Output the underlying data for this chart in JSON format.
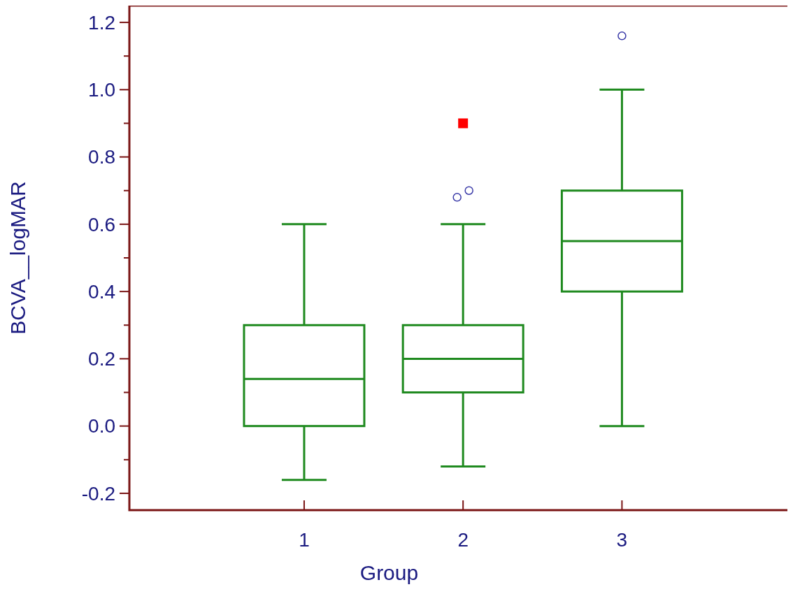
{
  "chart_data": {
    "type": "box",
    "xlabel": "Group",
    "ylabel": "BCVA__logMAR",
    "categories": [
      "1",
      "2",
      "3"
    ],
    "ylim": [
      -0.25,
      1.25
    ],
    "yticks": [
      -0.2,
      {
        "value": -0.1,
        "label": null
      },
      {
        "value": 0,
        "label": "0.0"
      },
      {
        "value": 0.1,
        "label": null
      },
      0.2,
      {
        "value": 0.3,
        "label": null
      },
      0.4,
      {
        "value": 0.5,
        "label": null
      },
      0.6,
      {
        "value": 0.7,
        "label": null
      },
      0.8,
      {
        "value": 0.9,
        "label": null
      },
      {
        "value": 1,
        "label": "1.0"
      },
      {
        "value": 1.1,
        "label": null
      },
      1.2
    ],
    "series": [
      {
        "type": "box",
        "color": "#1f8a1f",
        "boxes": [
          {
            "low": -0.16,
            "q1": 0,
            "median": 0.14,
            "q3": 0.3,
            "high": 0.6
          },
          {
            "low": -0.12,
            "q1": 0.1,
            "median": 0.2,
            "q3": 0.3,
            "high": 0.6,
            "outliers": [
              0.68,
              0.7
            ]
          },
          {
            "low": 0,
            "q1": 0.4,
            "median": 0.55,
            "q3": 0.7,
            "high": 1,
            "outliers": [
              1.16
            ]
          }
        ]
      },
      {
        "type": "scatter",
        "x": [
          "2"
        ],
        "values": [
          0.9
        ],
        "color": "#ff0000",
        "marker": "square"
      }
    ]
  }
}
